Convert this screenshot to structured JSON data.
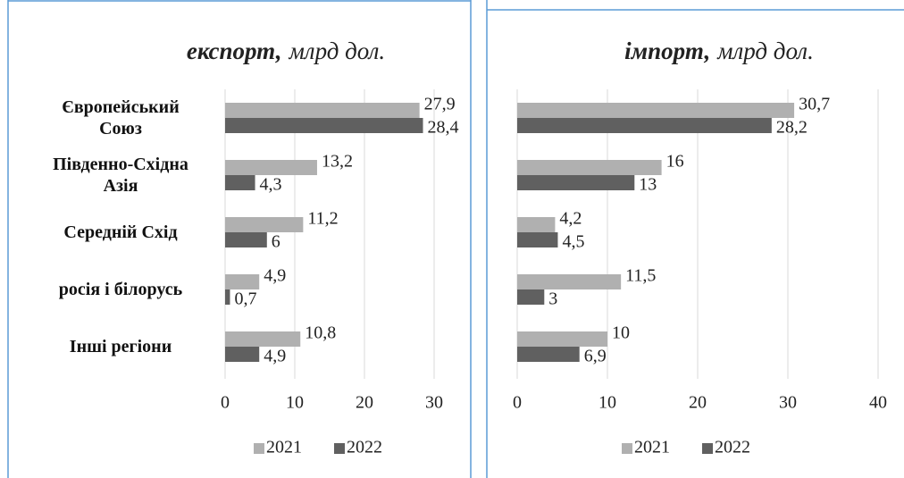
{
  "chart_data": [
    {
      "type": "bar",
      "orientation": "horizontal",
      "title": "експорт,",
      "subtitle": "млрд дол.",
      "categories": [
        "Європейський\nСоюз",
        "Південно-Східна\nАзія",
        "Середній Схід",
        "росія і білорусь",
        "Інші регіони"
      ],
      "series": [
        {
          "name": "2021",
          "color": "#b0b0b0",
          "values": [
            27.9,
            13.2,
            11.2,
            4.9,
            10.8
          ],
          "value_labels": [
            "27,9",
            "13,2",
            "11,2",
            "4,9",
            "10,8"
          ]
        },
        {
          "name": "2022",
          "color": "#606060",
          "values": [
            28.4,
            4.3,
            6,
            0.7,
            4.9
          ],
          "value_labels": [
            "28,4",
            "4,3",
            "6",
            "0,7",
            "4,9"
          ]
        }
      ],
      "xlim": [
        0,
        30
      ],
      "xticks": [
        0,
        10,
        20,
        30
      ],
      "grid": true,
      "legend": "bottom"
    },
    {
      "type": "bar",
      "orientation": "horizontal",
      "title": "імпорт,",
      "subtitle": "млрд дол.",
      "series": [
        {
          "name": "2021",
          "color": "#b0b0b0",
          "values": [
            30.7,
            16,
            4.2,
            11.5,
            10
          ],
          "value_labels": [
            "30,7",
            "16",
            "4,2",
            "11,5",
            "10"
          ]
        },
        {
          "name": "2022",
          "color": "#606060",
          "values": [
            28.2,
            13,
            4.5,
            3,
            6.9
          ],
          "value_labels": [
            "28,2",
            "13",
            "4,5",
            "3",
            "6,9"
          ]
        }
      ],
      "xlim": [
        0,
        40
      ],
      "xticks": [
        0,
        10,
        20,
        30,
        40
      ],
      "grid": true,
      "legend": "bottom"
    }
  ]
}
